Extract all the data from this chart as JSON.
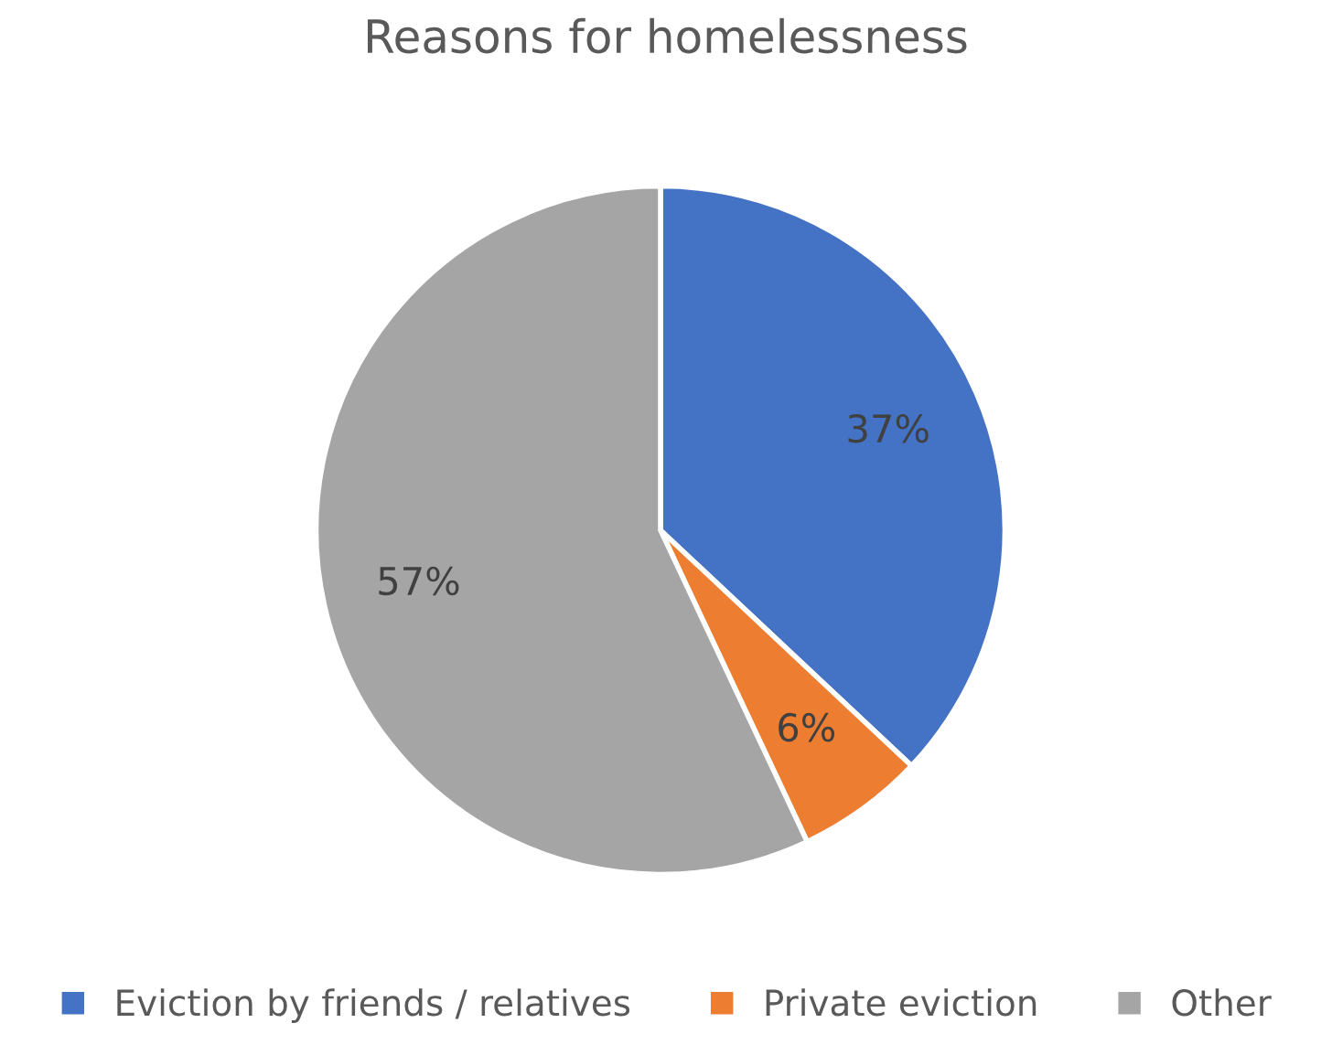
{
  "chart_data": {
    "type": "pie",
    "title": "Reasons for homelessness",
    "categories": [
      "Eviction by friends / relatives",
      "Private eviction",
      "Other"
    ],
    "values": [
      37,
      6,
      57
    ],
    "colors": [
      "#4472c4",
      "#ed7d31",
      "#a5a5a5"
    ],
    "value_labels": [
      "37%",
      "6%",
      "57%"
    ],
    "legend": "bottom"
  }
}
